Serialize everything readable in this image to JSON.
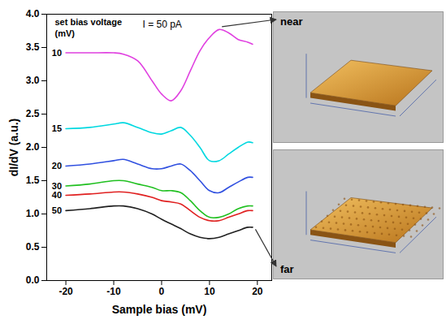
{
  "chart_data": {
    "type": "line",
    "x_label": "Sample bias (mV)",
    "y_label": "dI/dV (a.u.)",
    "annotations": [
      "set bias voltage",
      "(mV)",
      "I = 50 pA"
    ],
    "insets": [
      "near",
      "far"
    ],
    "x": [
      -20,
      -15,
      -10,
      -8,
      -5,
      -2,
      0,
      2,
      4,
      6,
      8,
      10,
      12,
      14,
      16,
      18,
      19
    ],
    "series": [
      {
        "name": "10",
        "color": "#e040e0",
        "values": [
          3.42,
          3.42,
          3.42,
          3.4,
          3.3,
          3.0,
          2.8,
          2.7,
          2.85,
          3.15,
          3.45,
          3.65,
          3.77,
          3.72,
          3.62,
          3.58,
          3.55
        ]
      },
      {
        "name": "15",
        "color": "#00d8e0",
        "values": [
          2.28,
          2.3,
          2.35,
          2.37,
          2.3,
          2.22,
          2.2,
          2.25,
          2.3,
          2.18,
          2.0,
          1.8,
          1.8,
          1.9,
          2.0,
          2.08,
          2.07
        ]
      },
      {
        "name": "20",
        "color": "#3050e0",
        "values": [
          1.72,
          1.75,
          1.8,
          1.82,
          1.75,
          1.68,
          1.68,
          1.72,
          1.75,
          1.65,
          1.5,
          1.35,
          1.32,
          1.4,
          1.48,
          1.55,
          1.55
        ]
      },
      {
        "name": "30",
        "color": "#20c020",
        "values": [
          1.42,
          1.45,
          1.5,
          1.5,
          1.45,
          1.4,
          1.35,
          1.35,
          1.32,
          1.2,
          1.05,
          0.95,
          0.95,
          1.0,
          1.08,
          1.12,
          1.12
        ]
      },
      {
        "name": "40",
        "color": "#e02020",
        "values": [
          1.28,
          1.3,
          1.33,
          1.33,
          1.3,
          1.25,
          1.2,
          1.18,
          1.15,
          1.05,
          0.95,
          0.9,
          0.9,
          0.95,
          1.0,
          1.05,
          1.05
        ]
      },
      {
        "name": "50",
        "color": "#202020",
        "values": [
          1.05,
          1.08,
          1.12,
          1.12,
          1.08,
          1.0,
          0.92,
          0.85,
          0.78,
          0.7,
          0.65,
          0.63,
          0.65,
          0.7,
          0.75,
          0.8,
          0.8
        ]
      }
    ],
    "xlim": [
      -24,
      23
    ],
    "ylim": [
      0,
      4
    ],
    "xticks": [
      -20,
      -10,
      0,
      10,
      20
    ],
    "yticks": [
      {
        "value": 0,
        "label": "0.0"
      },
      0.5,
      {
        "value": 1,
        "label": "1.0"
      },
      1.5,
      {
        "value": 2,
        "label": "2.0"
      },
      2.5,
      {
        "value": 3,
        "label": "3.0"
      },
      3.5,
      {
        "value": 4,
        "label": "4.0"
      }
    ]
  }
}
